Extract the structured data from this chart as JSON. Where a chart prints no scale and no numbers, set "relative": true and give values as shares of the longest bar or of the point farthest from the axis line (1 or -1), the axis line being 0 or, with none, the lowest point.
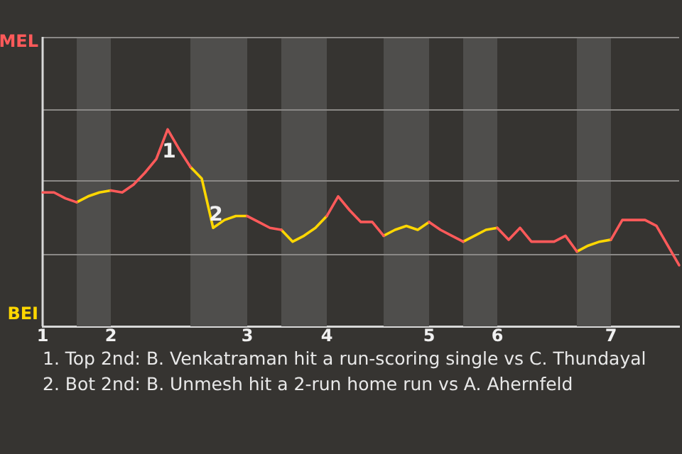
{
  "chart_data": {
    "type": "line",
    "relative": true,
    "categories": [
      "1",
      null,
      null,
      null,
      null,
      null,
      "2",
      null,
      null,
      null,
      null,
      null,
      null,
      null,
      null,
      null,
      null,
      null,
      "3",
      null,
      null,
      null,
      null,
      null,
      null,
      "4",
      null,
      null,
      null,
      null,
      null,
      null,
      null,
      null,
      "5",
      null,
      null,
      null,
      null,
      null,
      "6",
      null,
      null,
      null,
      null,
      null,
      null,
      null,
      null,
      null,
      "7",
      null,
      null,
      null,
      null,
      null,
      null
    ],
    "marker": "none",
    "line_style": "solid",
    "legend": false,
    "series": [
      {
        "name": "MEL",
        "color": "#ff5a5a",
        "values": [
          0.68,
          0.68,
          0.65,
          0.63,
          null,
          null,
          0.69,
          0.68,
          0.72,
          0.78,
          0.85,
          1,
          0.9,
          0.81,
          null,
          null,
          null,
          null,
          0.56,
          0.53,
          0.5,
          0.49,
          null,
          null,
          null,
          0.56,
          0.66,
          0.59,
          0.53,
          0.53,
          0.46,
          null,
          null,
          null,
          0.53,
          0.49,
          0.46,
          0.43,
          null,
          null,
          0.5,
          0.44,
          0.5,
          0.43,
          0.43,
          0.43,
          0.46,
          0.38,
          null,
          null,
          0.44,
          0.54,
          0.54,
          0.54,
          0.51,
          0.41,
          0.31
        ]
      },
      {
        "name": "BEI",
        "color": "#ffd700",
        "values": [
          null,
          null,
          null,
          0.63,
          0.66,
          0.68,
          0.69,
          null,
          null,
          null,
          null,
          null,
          null,
          0.81,
          0.75,
          0.5,
          0.54,
          0.56,
          0.56,
          null,
          null,
          0.49,
          0.43,
          0.46,
          0.5,
          0.56,
          null,
          null,
          null,
          null,
          0.46,
          0.49,
          0.51,
          0.49,
          0.53,
          null,
          null,
          0.43,
          0.46,
          0.49,
          0.5,
          null,
          null,
          null,
          null,
          null,
          null,
          0.38,
          0.41,
          0.43,
          0.44,
          null,
          null,
          null,
          null,
          null,
          null
        ]
      }
    ],
    "ref_lines": [
      {
        "axis": "y",
        "value": 0.37,
        "color": "#8a8886"
      },
      {
        "axis": "y",
        "value": 0.74,
        "color": "#8a8886"
      },
      {
        "axis": "y",
        "value": 1.1,
        "color": "#8a8886"
      },
      {
        "axis": "y",
        "value": 1.47,
        "color": "#8a8886"
      }
    ],
    "annotations": [
      {
        "text": "1",
        "y": 1
      },
      {
        "text": "2",
        "y": 0.5
      },
      "1. Top 2nd: B. Venkatraman hit a run-scoring single vs C. Thundayal",
      "2. Bot 2nd: B. Unmesh hit a 2-run home run vs A. Ahernfeld"
    ]
  }
}
